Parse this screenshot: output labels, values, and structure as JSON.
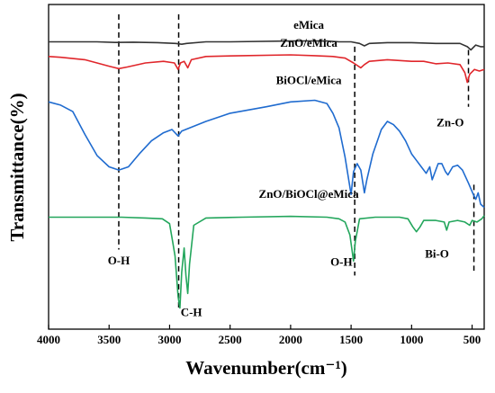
{
  "chart_data": {
    "type": "line",
    "xlabel": "Wavenumber(cm⁻¹)",
    "ylabel": "Transmittance(%)",
    "xlim": [
      4000,
      400
    ],
    "x_reversed": true,
    "xticks": [
      4000,
      3500,
      3000,
      2500,
      2000,
      1500,
      1000,
      500
    ],
    "yticks_shown": false,
    "grid": false,
    "legend": "none",
    "series": [
      {
        "name": "eMica",
        "color": "#333333",
        "points": [
          [
            4000,
            -3
          ],
          [
            3600,
            -3
          ],
          [
            3450,
            -3.4
          ],
          [
            3300,
            -3.2
          ],
          [
            3100,
            -3.5
          ],
          [
            2950,
            -4
          ],
          [
            2900,
            -4.5
          ],
          [
            2860,
            -4
          ],
          [
            2700,
            -3
          ],
          [
            2500,
            -3
          ],
          [
            2000,
            -2.5
          ],
          [
            1700,
            -2.5
          ],
          [
            1600,
            -3
          ],
          [
            1500,
            -3
          ],
          [
            1430,
            -4
          ],
          [
            1390,
            -5.5
          ],
          [
            1350,
            -4
          ],
          [
            1200,
            -3.5
          ],
          [
            1000,
            -3.5
          ],
          [
            800,
            -4
          ],
          [
            600,
            -4
          ],
          [
            540,
            -6
          ],
          [
            510,
            -8
          ],
          [
            470,
            -5
          ],
          [
            430,
            -6
          ],
          [
            400,
            -6
          ]
        ]
      },
      {
        "name": "ZnO/eMica",
        "color": "#e0262b",
        "points": [
          [
            4000,
            -12
          ],
          [
            3900,
            -12.5
          ],
          [
            3700,
            -14
          ],
          [
            3600,
            -16
          ],
          [
            3500,
            -18
          ],
          [
            3420,
            -19.5
          ],
          [
            3350,
            -18.5
          ],
          [
            3200,
            -16
          ],
          [
            3050,
            -15
          ],
          [
            2960,
            -16
          ],
          [
            2930,
            -20
          ],
          [
            2910,
            -16
          ],
          [
            2880,
            -15
          ],
          [
            2850,
            -19
          ],
          [
            2820,
            -14
          ],
          [
            2700,
            -12
          ],
          [
            2400,
            -11.5
          ],
          [
            2000,
            -11
          ],
          [
            1800,
            -11.5
          ],
          [
            1650,
            -12
          ],
          [
            1550,
            -13
          ],
          [
            1480,
            -16
          ],
          [
            1420,
            -19
          ],
          [
            1390,
            -17
          ],
          [
            1350,
            -15
          ],
          [
            1200,
            -14
          ],
          [
            1000,
            -15
          ],
          [
            900,
            -15
          ],
          [
            800,
            -16.5
          ],
          [
            700,
            -16
          ],
          [
            600,
            -17
          ],
          [
            560,
            -22
          ],
          [
            540,
            -28
          ],
          [
            520,
            -23
          ],
          [
            480,
            -20
          ],
          [
            440,
            -21
          ],
          [
            400,
            -20
          ]
        ]
      },
      {
        "name": "BiOCl/eMica",
        "color": "#1f6bcf",
        "points": [
          [
            4000,
            -40
          ],
          [
            3900,
            -42
          ],
          [
            3800,
            -46
          ],
          [
            3700,
            -60
          ],
          [
            3600,
            -73
          ],
          [
            3500,
            -80
          ],
          [
            3420,
            -82
          ],
          [
            3340,
            -80
          ],
          [
            3250,
            -72
          ],
          [
            3150,
            -64
          ],
          [
            3050,
            -59
          ],
          [
            2980,
            -57
          ],
          [
            2930,
            -61
          ],
          [
            2900,
            -58
          ],
          [
            2700,
            -52
          ],
          [
            2500,
            -47
          ],
          [
            2200,
            -43
          ],
          [
            2000,
            -40
          ],
          [
            1800,
            -39
          ],
          [
            1700,
            -41
          ],
          [
            1650,
            -47
          ],
          [
            1600,
            -56
          ],
          [
            1550,
            -74
          ],
          [
            1500,
            -97
          ],
          [
            1480,
            -83
          ],
          [
            1450,
            -78
          ],
          [
            1420,
            -82
          ],
          [
            1390,
            -96
          ],
          [
            1370,
            -88
          ],
          [
            1320,
            -72
          ],
          [
            1250,
            -57
          ],
          [
            1200,
            -52
          ],
          [
            1150,
            -54
          ],
          [
            1100,
            -58
          ],
          [
            1050,
            -64
          ],
          [
            1000,
            -72
          ],
          [
            960,
            -76
          ],
          [
            920,
            -80
          ],
          [
            880,
            -84
          ],
          [
            850,
            -80
          ],
          [
            830,
            -88
          ],
          [
            800,
            -82
          ],
          [
            780,
            -78
          ],
          [
            750,
            -78
          ],
          [
            720,
            -83
          ],
          [
            700,
            -85
          ],
          [
            660,
            -80
          ],
          [
            620,
            -79
          ],
          [
            580,
            -82
          ],
          [
            530,
            -90
          ],
          [
            490,
            -97
          ],
          [
            470,
            -100
          ],
          [
            450,
            -96
          ],
          [
            430,
            -103
          ],
          [
            400,
            -105
          ]
        ]
      },
      {
        "name": "ZnO/BiOCl@eMica",
        "color": "#23a65c",
        "points": [
          [
            4000,
            -111
          ],
          [
            3600,
            -111
          ],
          [
            3400,
            -111
          ],
          [
            3200,
            -111.5
          ],
          [
            3060,
            -112
          ],
          [
            3000,
            -115
          ],
          [
            2975,
            -126
          ],
          [
            2955,
            -135
          ],
          [
            2930,
            -160
          ],
          [
            2915,
            -167
          ],
          [
            2900,
            -145
          ],
          [
            2880,
            -130
          ],
          [
            2865,
            -147
          ],
          [
            2850,
            -158
          ],
          [
            2835,
            -140
          ],
          [
            2800,
            -116
          ],
          [
            2700,
            -111.5
          ],
          [
            2400,
            -111
          ],
          [
            2000,
            -110.5
          ],
          [
            1700,
            -111
          ],
          [
            1600,
            -112
          ],
          [
            1550,
            -114
          ],
          [
            1510,
            -122
          ],
          [
            1480,
            -138
          ],
          [
            1465,
            -126
          ],
          [
            1430,
            -112
          ],
          [
            1300,
            -111
          ],
          [
            1100,
            -111
          ],
          [
            1030,
            -112
          ],
          [
            990,
            -117
          ],
          [
            960,
            -120
          ],
          [
            930,
            -117
          ],
          [
            900,
            -113
          ],
          [
            850,
            -113
          ],
          [
            800,
            -113
          ],
          [
            730,
            -114
          ],
          [
            710,
            -119
          ],
          [
            690,
            -114
          ],
          [
            620,
            -113
          ],
          [
            560,
            -114
          ],
          [
            520,
            -116
          ],
          [
            500,
            -113
          ],
          [
            460,
            -114
          ],
          [
            420,
            -112
          ],
          [
            400,
            -110
          ]
        ]
      }
    ],
    "series_labels": [
      {
        "text": "eMica",
        "x": 1850,
        "y": 5
      },
      {
        "text": "ZnO/eMica",
        "x": 1850,
        "y": -6
      },
      {
        "text": "BiOCl/eMica",
        "x": 1850,
        "y": -29
      },
      {
        "text": "ZnO/BiOCl@eMica",
        "x": 1850,
        "y": -99
      }
    ],
    "reference_lines": [
      {
        "x": 3420,
        "y_from": 14,
        "y_to": -131
      },
      {
        "x": 2925,
        "y_from": 14,
        "y_to": -167
      },
      {
        "x": 1470,
        "y_from": -6,
        "y_to": -147
      },
      {
        "x": 530,
        "y_from": -8,
        "y_to": -43
      },
      {
        "x": 485,
        "y_from": -91,
        "y_to": -144
      }
    ],
    "annotations": [
      {
        "text": "O-H",
        "x": 3420,
        "y": -140
      },
      {
        "text": "C-H",
        "x": 2820,
        "y": -172
      },
      {
        "text": "O-H",
        "x": 1580,
        "y": -141
      },
      {
        "text": "Zn-O",
        "x": 680,
        "y": -55
      },
      {
        "text": "Bi-O",
        "x": 790,
        "y": -136
      }
    ]
  }
}
